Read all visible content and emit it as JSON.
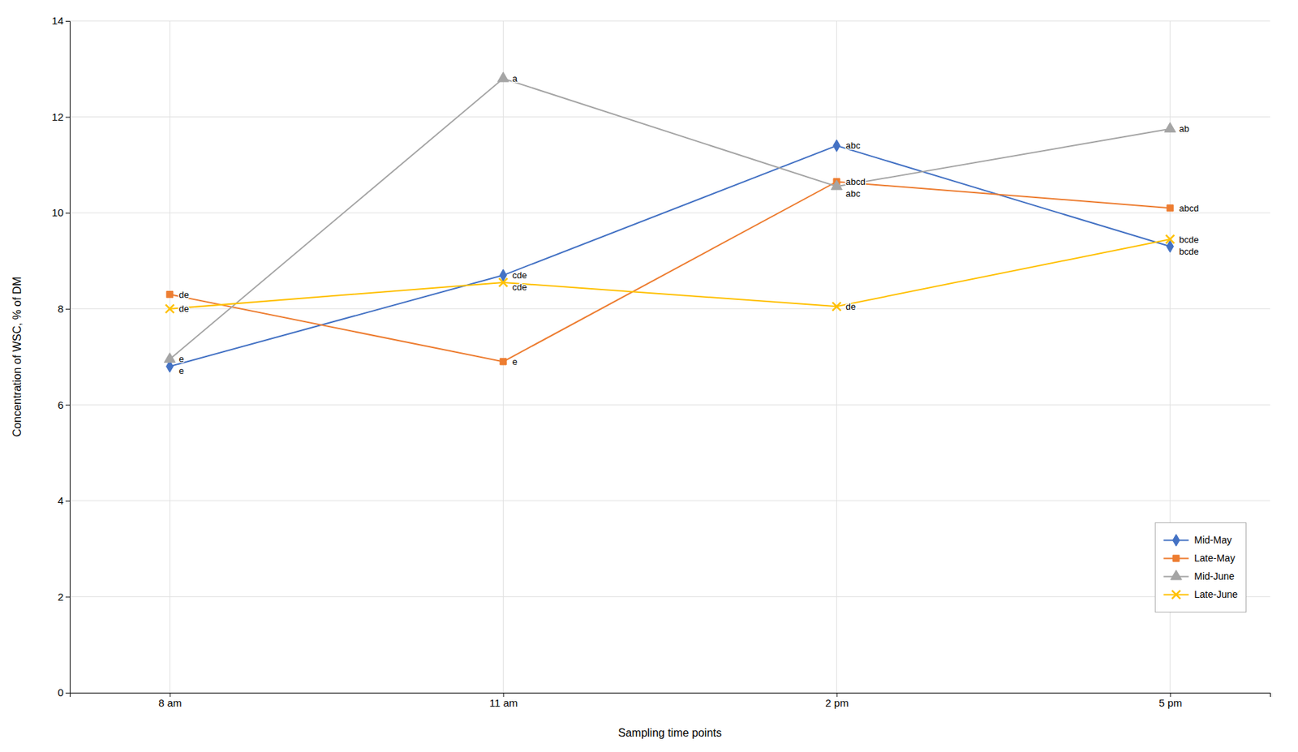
{
  "chart_data": {
    "type": "line",
    "xlabel": "Sampling time points",
    "ylabel": "Concentration of WSC, % of DM",
    "categories": [
      "8 am",
      "11 am",
      "2 pm",
      "5 pm"
    ],
    "series": [
      {
        "name": "Mid-May",
        "color": "#4472C4",
        "marker": "diamond",
        "values": [
          6.8,
          8.7,
          11.4,
          9.3
        ]
      },
      {
        "name": "Late-May",
        "color": "#ED7D31",
        "marker": "square",
        "values": [
          8.3,
          6.9,
          10.65,
          10.1
        ]
      },
      {
        "name": "Mid-June",
        "color": "#A5A5A5",
        "marker": "triangle",
        "values": [
          6.95,
          12.8,
          10.55,
          11.75
        ]
      },
      {
        "name": "Late-June",
        "color": "#FFC000",
        "marker": "x",
        "values": [
          8.0,
          8.55,
          8.05,
          9.45
        ]
      }
    ],
    "annotations": [
      {
        "text": "de",
        "series": "Late-May",
        "category": "8 am"
      },
      {
        "text": "de",
        "series": "Late-June",
        "category": "8 am"
      },
      {
        "text": "e",
        "series": "Mid-June",
        "category": "8 am"
      },
      {
        "text": "e",
        "series": "Mid-May",
        "category": "8 am"
      },
      {
        "text": "a",
        "series": "Mid-June",
        "category": "11 am"
      },
      {
        "text": "cde",
        "series": "Mid-May",
        "category": "11 am"
      },
      {
        "text": "cde",
        "series": "Late-June",
        "category": "11 am"
      },
      {
        "text": "e",
        "series": "Late-May",
        "category": "11 am"
      },
      {
        "text": "abc",
        "series": "Mid-May",
        "category": "2 pm"
      },
      {
        "text": "abc",
        "series": "Mid-June",
        "category": "2 pm"
      },
      {
        "text": "abcd",
        "series": "Late-May",
        "category": "2 pm"
      },
      {
        "text": "de",
        "series": "Late-June",
        "category": "2 pm"
      },
      {
        "text": "ab",
        "series": "Mid-June",
        "category": "5 pm"
      },
      {
        "text": "abcd",
        "series": "Late-May",
        "category": "5 pm"
      },
      {
        "text": "bcde",
        "series": "Mid-May",
        "category": "5 pm"
      },
      {
        "text": "bcde",
        "series": "Late-June",
        "category": "5 pm"
      }
    ],
    "ylim": [
      0,
      14
    ],
    "yticks": [
      0,
      2,
      4,
      6,
      8,
      10,
      12,
      14
    ],
    "grid": true,
    "legend": "lower right"
  }
}
